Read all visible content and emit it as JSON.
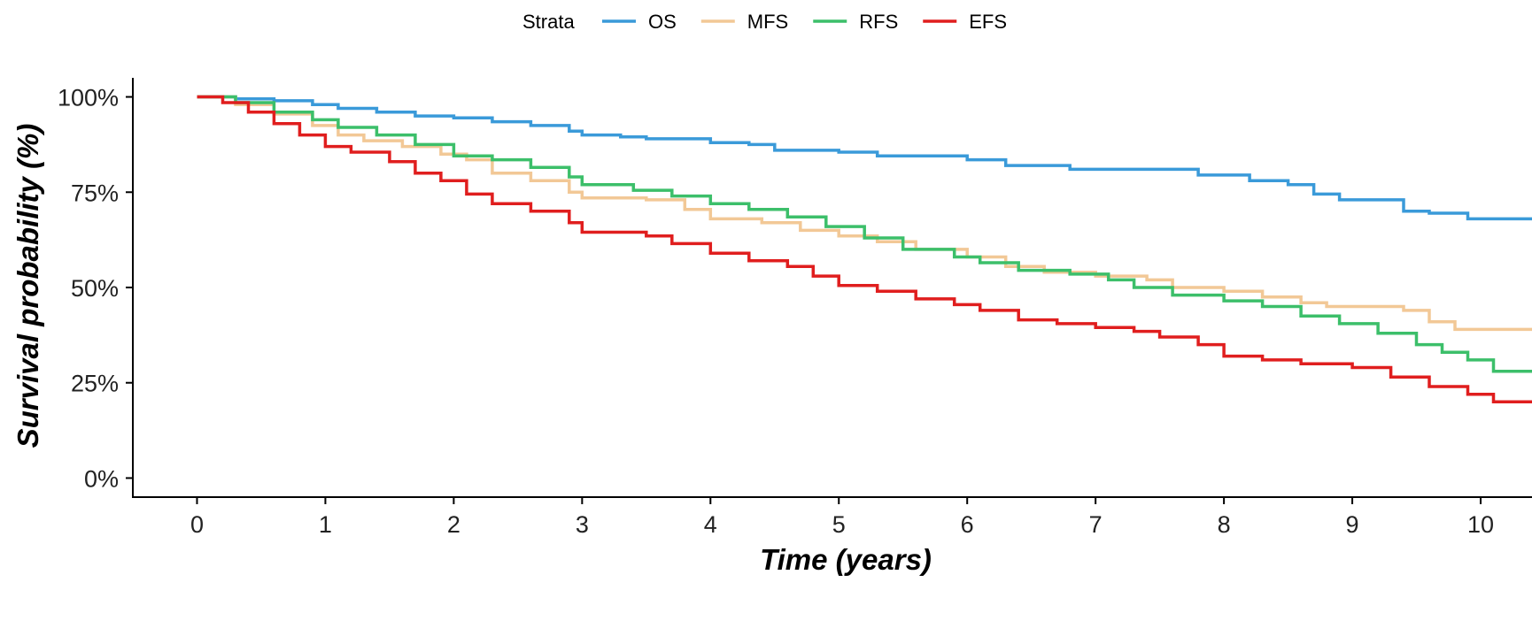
{
  "chart_data": {
    "type": "line",
    "step": true,
    "xlabel": "Time (years)",
    "ylabel": "Survival probability (%)",
    "xlim": [
      -0.5,
      10.4
    ],
    "ylim": [
      -0.05,
      1.05
    ],
    "x_ticks": [
      0,
      1,
      2,
      3,
      4,
      5,
      6,
      7,
      8,
      9,
      10
    ],
    "x_tick_labels": [
      "0",
      "1",
      "2",
      "3",
      "4",
      "5",
      "6",
      "7",
      "8",
      "9",
      "10"
    ],
    "y_ticks": [
      0,
      0.25,
      0.5,
      0.75,
      1.0
    ],
    "y_tick_labels": [
      "0%",
      "25%",
      "50%",
      "75%",
      "100%"
    ],
    "grid": false,
    "legend": {
      "title": "Strata",
      "position": "top"
    },
    "series": [
      {
        "name": "OS",
        "color": "#3A9AD9",
        "points": [
          [
            0,
            1.0
          ],
          [
            0.3,
            0.995
          ],
          [
            0.6,
            0.99
          ],
          [
            0.9,
            0.98
          ],
          [
            1.1,
            0.97
          ],
          [
            1.4,
            0.96
          ],
          [
            1.7,
            0.95
          ],
          [
            2.0,
            0.945
          ],
          [
            2.3,
            0.935
          ],
          [
            2.6,
            0.925
          ],
          [
            2.9,
            0.91
          ],
          [
            3.0,
            0.9
          ],
          [
            3.3,
            0.895
          ],
          [
            3.5,
            0.89
          ],
          [
            4.0,
            0.88
          ],
          [
            4.3,
            0.875
          ],
          [
            4.5,
            0.86
          ],
          [
            5.0,
            0.855
          ],
          [
            5.3,
            0.845
          ],
          [
            5.8,
            0.845
          ],
          [
            6.0,
            0.835
          ],
          [
            6.3,
            0.82
          ],
          [
            6.8,
            0.81
          ],
          [
            7.5,
            0.81
          ],
          [
            7.8,
            0.795
          ],
          [
            8.2,
            0.78
          ],
          [
            8.5,
            0.77
          ],
          [
            8.7,
            0.745
          ],
          [
            8.9,
            0.73
          ],
          [
            9.4,
            0.7
          ],
          [
            9.6,
            0.695
          ],
          [
            9.9,
            0.68
          ],
          [
            10.4,
            0.68
          ]
        ]
      },
      {
        "name": "MFS",
        "color": "#F2C896",
        "points": [
          [
            0,
            1.0
          ],
          [
            0.3,
            0.98
          ],
          [
            0.6,
            0.955
          ],
          [
            0.9,
            0.925
          ],
          [
            1.1,
            0.9
          ],
          [
            1.3,
            0.885
          ],
          [
            1.6,
            0.87
          ],
          [
            1.9,
            0.85
          ],
          [
            2.1,
            0.835
          ],
          [
            2.3,
            0.8
          ],
          [
            2.6,
            0.78
          ],
          [
            2.9,
            0.75
          ],
          [
            3.0,
            0.735
          ],
          [
            3.5,
            0.73
          ],
          [
            3.8,
            0.705
          ],
          [
            4.0,
            0.68
          ],
          [
            4.4,
            0.67
          ],
          [
            4.7,
            0.65
          ],
          [
            5.0,
            0.635
          ],
          [
            5.3,
            0.62
          ],
          [
            5.6,
            0.6
          ],
          [
            6.0,
            0.58
          ],
          [
            6.3,
            0.555
          ],
          [
            6.6,
            0.54
          ],
          [
            7.0,
            0.53
          ],
          [
            7.4,
            0.52
          ],
          [
            7.6,
            0.5
          ],
          [
            8.0,
            0.49
          ],
          [
            8.3,
            0.475
          ],
          [
            8.6,
            0.46
          ],
          [
            8.8,
            0.45
          ],
          [
            9.4,
            0.44
          ],
          [
            9.6,
            0.41
          ],
          [
            9.8,
            0.39
          ],
          [
            10.4,
            0.39
          ]
        ]
      },
      {
        "name": "RFS",
        "color": "#3CBF6A",
        "points": [
          [
            0,
            1.0
          ],
          [
            0.3,
            0.985
          ],
          [
            0.6,
            0.96
          ],
          [
            0.9,
            0.94
          ],
          [
            1.1,
            0.92
          ],
          [
            1.4,
            0.9
          ],
          [
            1.7,
            0.875
          ],
          [
            2.0,
            0.845
          ],
          [
            2.3,
            0.835
          ],
          [
            2.6,
            0.815
          ],
          [
            2.9,
            0.79
          ],
          [
            3.0,
            0.77
          ],
          [
            3.4,
            0.755
          ],
          [
            3.7,
            0.74
          ],
          [
            4.0,
            0.72
          ],
          [
            4.3,
            0.705
          ],
          [
            4.6,
            0.685
          ],
          [
            4.9,
            0.66
          ],
          [
            5.2,
            0.63
          ],
          [
            5.5,
            0.6
          ],
          [
            5.9,
            0.58
          ],
          [
            6.1,
            0.565
          ],
          [
            6.4,
            0.545
          ],
          [
            6.8,
            0.535
          ],
          [
            7.1,
            0.52
          ],
          [
            7.3,
            0.5
          ],
          [
            7.6,
            0.48
          ],
          [
            8.0,
            0.465
          ],
          [
            8.3,
            0.45
          ],
          [
            8.6,
            0.425
          ],
          [
            8.9,
            0.405
          ],
          [
            9.2,
            0.38
          ],
          [
            9.5,
            0.35
          ],
          [
            9.7,
            0.33
          ],
          [
            9.9,
            0.31
          ],
          [
            10.1,
            0.28
          ],
          [
            10.4,
            0.28
          ]
        ]
      },
      {
        "name": "EFS",
        "color": "#E01E1E",
        "points": [
          [
            0,
            1.0
          ],
          [
            0.2,
            0.985
          ],
          [
            0.4,
            0.96
          ],
          [
            0.6,
            0.93
          ],
          [
            0.8,
            0.9
          ],
          [
            1.0,
            0.87
          ],
          [
            1.2,
            0.855
          ],
          [
            1.5,
            0.83
          ],
          [
            1.7,
            0.8
          ],
          [
            1.9,
            0.78
          ],
          [
            2.1,
            0.745
          ],
          [
            2.3,
            0.72
          ],
          [
            2.6,
            0.7
          ],
          [
            2.9,
            0.67
          ],
          [
            3.0,
            0.645
          ],
          [
            3.5,
            0.635
          ],
          [
            3.7,
            0.615
          ],
          [
            4.0,
            0.59
          ],
          [
            4.3,
            0.57
          ],
          [
            4.6,
            0.555
          ],
          [
            4.8,
            0.53
          ],
          [
            5.0,
            0.505
          ],
          [
            5.3,
            0.49
          ],
          [
            5.6,
            0.47
          ],
          [
            5.9,
            0.455
          ],
          [
            6.1,
            0.44
          ],
          [
            6.4,
            0.415
          ],
          [
            6.7,
            0.405
          ],
          [
            7.0,
            0.395
          ],
          [
            7.3,
            0.385
          ],
          [
            7.5,
            0.37
          ],
          [
            7.8,
            0.35
          ],
          [
            8.0,
            0.32
          ],
          [
            8.3,
            0.31
          ],
          [
            8.6,
            0.3
          ],
          [
            9.0,
            0.29
          ],
          [
            9.3,
            0.265
          ],
          [
            9.6,
            0.24
          ],
          [
            9.9,
            0.22
          ],
          [
            10.1,
            0.2
          ],
          [
            10.4,
            0.2
          ]
        ]
      }
    ]
  }
}
